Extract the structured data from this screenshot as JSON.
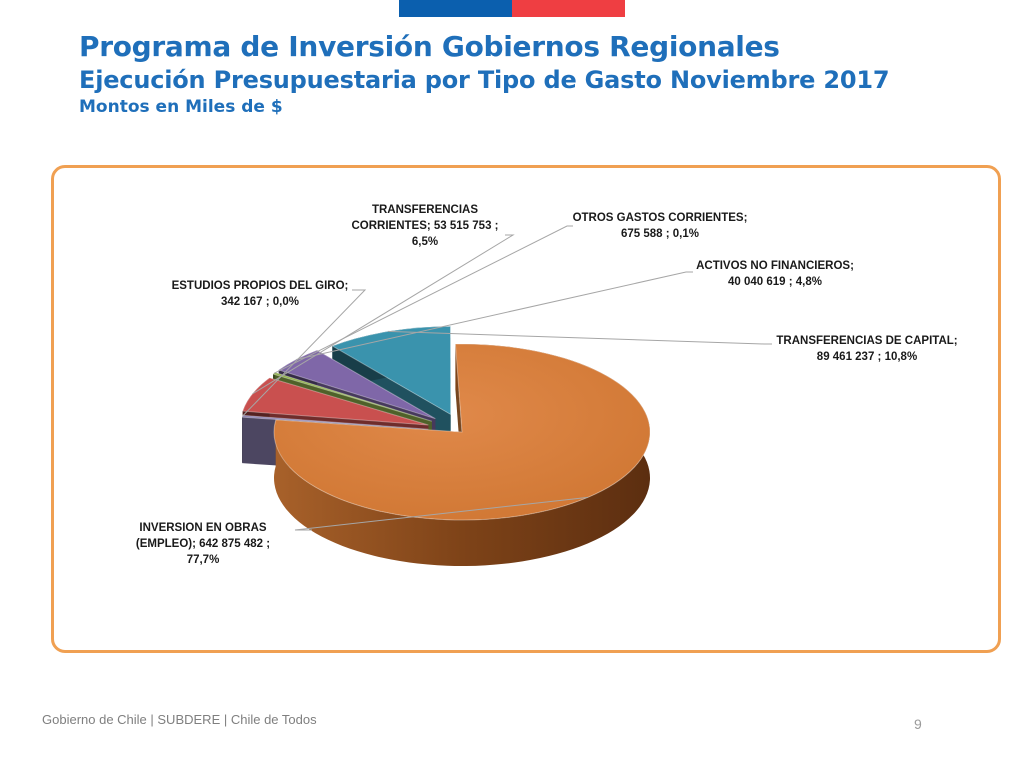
{
  "header": {
    "title": "Programa de Inversión Gobiernos Regionales",
    "subtitle": "Ejecución Presupuestaria por Tipo de Gasto Noviembre 2017",
    "units": "Montos en Miles de $"
  },
  "chart_data": {
    "type": "pie",
    "style": "3d-exploded",
    "slices": [
      {
        "label_lines": [
          "INVERSION EN OBRAS",
          "(EMPLEO);  642 875 482 ;",
          "77,7%"
        ],
        "category": "INVERSION EN OBRAS (EMPLEO)",
        "value": 642875482,
        "percent": 77.7,
        "color": "#d9803b"
      },
      {
        "label_lines": [
          "ESTUDIOS PROPIOS DEL GIRO;",
          "342 167 ; 0,0%"
        ],
        "category": "ESTUDIOS PROPIOS DEL GIRO",
        "value": 342167,
        "percent": 0.0,
        "color": "#8b7fb0"
      },
      {
        "label_lines": [
          "TRANSFERENCIAS",
          "CORRIENTES;  53 515 753 ;",
          "6,5%"
        ],
        "category": "TRANSFERENCIAS CORRIENTES",
        "value": 53515753,
        "percent": 6.5,
        "color": "#c9504f"
      },
      {
        "label_lines": [
          "OTROS GASTOS CORRIENTES;",
          "675 588 ; 0,1%"
        ],
        "category": "OTROS GASTOS CORRIENTES",
        "value": 675588,
        "percent": 0.1,
        "color": "#8fb04a"
      },
      {
        "label_lines": [
          "ACTIVOS NO FINANCIEROS;",
          "40 040 619 ; 4,8%"
        ],
        "category": "ACTIVOS NO FINANCIEROS",
        "value": 40040619,
        "percent": 4.8,
        "color": "#7f67a8"
      },
      {
        "label_lines": [
          "TRANSFERENCIAS DE CAPITAL;",
          "89 461 237 ; 10,8%"
        ],
        "category": "TRANSFERENCIAS DE CAPITAL",
        "value": 89461237,
        "percent": 10.8,
        "color": "#3a93ad"
      }
    ]
  },
  "footer": {
    "text": "Gobierno de Chile | SUBDERE | Chile de Todos",
    "page_number": "9"
  }
}
